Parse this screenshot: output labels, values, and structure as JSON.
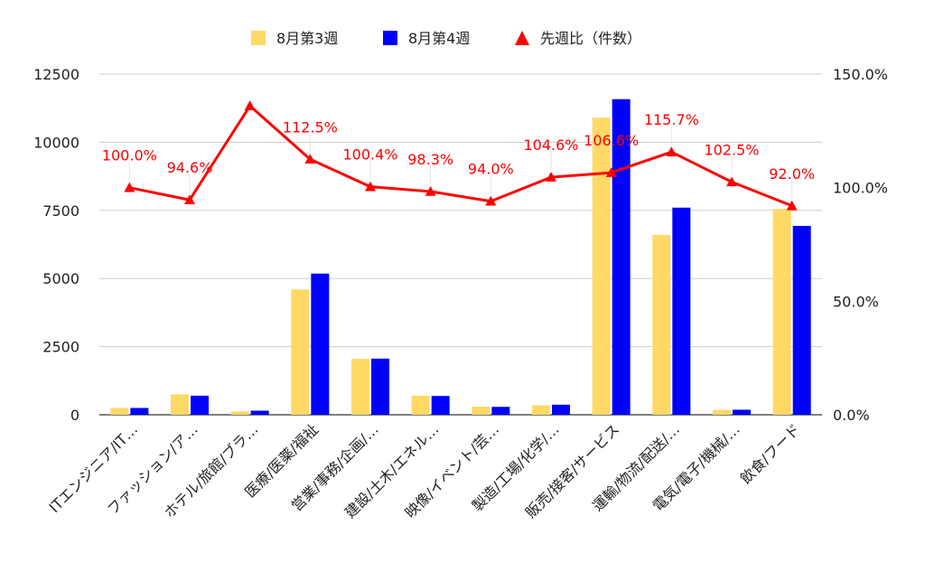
{
  "chart_data": {
    "type": "bar",
    "combo": "bar+line",
    "categories": [
      "ITエンジニア/IT…",
      "ファッション/ア…",
      "ホテル/旅館/ブラ…",
      "医療/医薬/福祉",
      "営業/事務/企画/…",
      "建設/土木/エネル…",
      "映像/イベント/芸…",
      "製造/工場/化学/…",
      "販売/接客/サービス",
      "運輸/物流/配送/…",
      "電気/電子/機械/…",
      "飲食/フード"
    ],
    "series": [
      {
        "name": "8月第3週",
        "type": "bar",
        "axis": "left",
        "color": "#ffd966",
        "values": [
          250,
          750,
          120,
          4600,
          2050,
          700,
          300,
          350,
          10900,
          6600,
          180,
          7550
        ]
      },
      {
        "name": "8月第4週",
        "type": "bar",
        "axis": "left",
        "color": "#0000ff",
        "values": [
          250,
          700,
          150,
          5180,
          2060,
          690,
          290,
          370,
          11580,
          7600,
          185,
          6930
        ]
      },
      {
        "name": "先週比（件数）",
        "type": "line",
        "axis": "right",
        "color": "#ff0000",
        "marker": "triangle",
        "values": [
          100.0,
          94.6,
          136.0,
          112.5,
          100.4,
          98.3,
          94.0,
          104.6,
          106.6,
          115.7,
          102.5,
          92.0
        ]
      }
    ],
    "line_data_labels": [
      "100.0%",
      "94.6%",
      "",
      "112.5%",
      "100.4%",
      "98.3%",
      "94.0%",
      "104.6%",
      "106.6%",
      "115.7%",
      "102.5%",
      "92.0%"
    ],
    "y_left": {
      "min": 0,
      "max": 12500,
      "ticks": [
        "0",
        "2500",
        "5000",
        "7500",
        "10000",
        "12500"
      ]
    },
    "y_right": {
      "min": 0,
      "max": 150,
      "ticks": [
        "0.0%",
        "50.0%",
        "100.0%",
        "150.0%"
      ]
    },
    "legend_position": "top",
    "grid": true
  }
}
